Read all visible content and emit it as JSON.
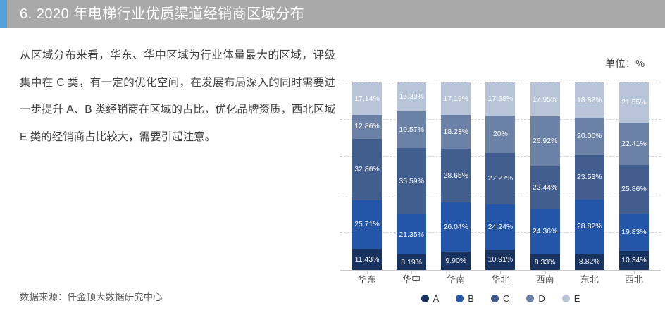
{
  "header": {
    "title": "6. 2020 年电梯行业优质渠道经销商区域分布",
    "accent_color": "#55a2db",
    "bar_color": "#a9a9a9"
  },
  "commentary": "从区域分布来看，华东、华中区域为行业体量最大的区域，评级集中在 C 类，有一定的优化空间，在发展布局深入的同时需要进一步提升 A、B 类经销商在区域的占比，优化品牌资质，西北区域 E 类的经销商占比较大，需要引起注意。",
  "source_label": "数据来源：仟金顶大数据研究中心",
  "chart_data": {
    "type": "bar",
    "stacked": true,
    "unit_label": "单位：%",
    "categories": [
      "华东",
      "华中",
      "华南",
      "华北",
      "西南",
      "东北",
      "西北"
    ],
    "series": [
      {
        "name": "A",
        "color": "#18335f",
        "values": [
          11.43,
          8.19,
          9.9,
          10.91,
          8.33,
          8.82,
          10.34
        ],
        "labels": [
          "11.43%",
          "8.19%",
          "9.90%",
          "10.91%",
          "8.33%",
          "8.82%",
          "10.34%"
        ]
      },
      {
        "name": "B",
        "color": "#2355a8",
        "values": [
          25.71,
          21.35,
          26.04,
          24.24,
          24.36,
          28.82,
          19.83
        ],
        "labels": [
          "25.71%",
          "21.35%",
          "26.04%",
          "24.24%",
          "24.36%",
          "28.82%",
          "19.83%"
        ]
      },
      {
        "name": "C",
        "color": "#415e8e",
        "values": [
          32.86,
          35.59,
          28.65,
          27.27,
          22.44,
          23.53,
          25.86
        ],
        "labels": [
          "32.86%",
          "35.59%",
          "28.65%",
          "27.27%",
          "22.44%",
          "23.53%",
          "25.86%"
        ]
      },
      {
        "name": "D",
        "color": "#6b81a6",
        "values": [
          12.86,
          19.57,
          18.23,
          20,
          26.92,
          20.0,
          22.41
        ],
        "labels": [
          "12.86%",
          "19.57%",
          "18.23%",
          "20%",
          "26.92%",
          "20.00%",
          "22.41%"
        ]
      },
      {
        "name": "E",
        "color": "#b8c5d9",
        "values": [
          17.14,
          15.3,
          17.19,
          17.58,
          17.95,
          18.82,
          21.55
        ],
        "labels": [
          "17.14%",
          "15.30%",
          "17.19%",
          "17.58%",
          "17.95%",
          "18.82%",
          "21.55%"
        ]
      }
    ],
    "ylim": [
      0,
      100
    ],
    "gridlines": [
      20,
      40,
      60,
      80,
      100
    ],
    "legend": [
      "A",
      "B",
      "C",
      "D",
      "E"
    ],
    "legend_position": "bottom",
    "grid": true
  }
}
